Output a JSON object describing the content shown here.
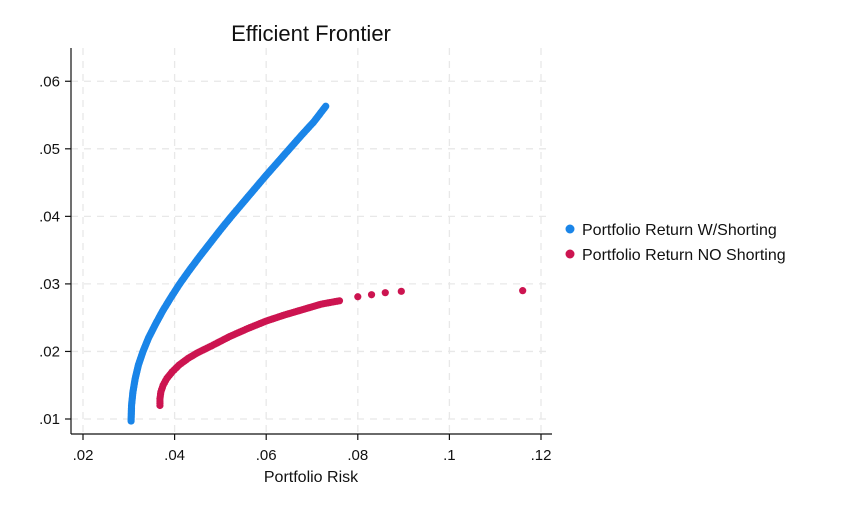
{
  "chart_data": {
    "type": "scatter",
    "title": "Efficient Frontier",
    "xlabel": "Portfolio Risk",
    "ylabel": "",
    "xlim": [
      0.02,
      0.12
    ],
    "ylim": [
      0.01,
      0.063
    ],
    "xticks": [
      ".02",
      ".04",
      ".06",
      ".08",
      ".1",
      ".12"
    ],
    "yticks": [
      ".01",
      ".02",
      ".03",
      ".04",
      ".05",
      ".06"
    ],
    "grid": true,
    "legend_position": "right",
    "series": [
      {
        "name": "Portfolio Return W/Shorting",
        "color": "#1a85e8",
        "points": [
          [
            0.0305,
            0.0097
          ],
          [
            0.0306,
            0.012
          ],
          [
            0.0309,
            0.014
          ],
          [
            0.0314,
            0.016
          ],
          [
            0.0321,
            0.018
          ],
          [
            0.0331,
            0.02
          ],
          [
            0.0343,
            0.022
          ],
          [
            0.0358,
            0.024
          ],
          [
            0.0374,
            0.026
          ],
          [
            0.0392,
            0.028
          ],
          [
            0.0411,
            0.03
          ],
          [
            0.0432,
            0.032
          ],
          [
            0.0454,
            0.034
          ],
          [
            0.0477,
            0.036
          ],
          [
            0.05,
            0.038
          ],
          [
            0.0524,
            0.04
          ],
          [
            0.0549,
            0.042
          ],
          [
            0.0574,
            0.044
          ],
          [
            0.0599,
            0.046
          ],
          [
            0.0625,
            0.048
          ],
          [
            0.0651,
            0.05
          ],
          [
            0.0677,
            0.052
          ],
          [
            0.0704,
            0.054
          ],
          [
            0.073,
            0.0563
          ]
        ]
      },
      {
        "name": "Portfolio Return NO Shorting",
        "color": "#cc1450",
        "points": [
          [
            0.0368,
            0.012
          ],
          [
            0.0368,
            0.013
          ],
          [
            0.037,
            0.014
          ],
          [
            0.0375,
            0.015
          ],
          [
            0.0383,
            0.016
          ],
          [
            0.0395,
            0.017
          ],
          [
            0.041,
            0.018
          ],
          [
            0.043,
            0.019
          ],
          [
            0.045,
            0.0198
          ],
          [
            0.048,
            0.0208
          ],
          [
            0.052,
            0.0222
          ],
          [
            0.056,
            0.0234
          ],
          [
            0.06,
            0.0245
          ],
          [
            0.064,
            0.0254
          ],
          [
            0.068,
            0.0262
          ],
          [
            0.072,
            0.027
          ],
          [
            0.076,
            0.0275
          ],
          [
            0.08,
            0.0281
          ],
          [
            0.083,
            0.0284
          ],
          [
            0.086,
            0.0287
          ],
          [
            0.0895,
            0.0289
          ],
          [
            0.116,
            0.029
          ]
        ]
      }
    ]
  }
}
